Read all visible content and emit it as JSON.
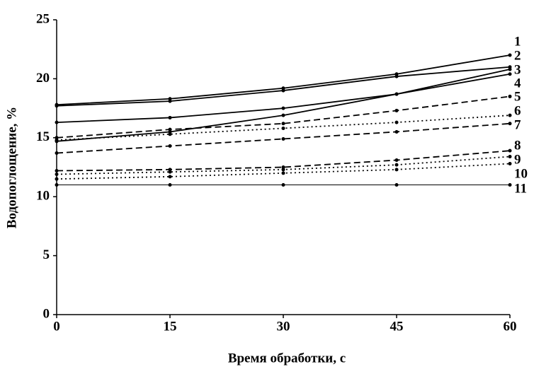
{
  "chart_data": {
    "type": "line",
    "x_label": "Время обработки, с",
    "y_label": "Водопоглощение, %",
    "x": [
      0,
      15,
      30,
      45,
      60
    ],
    "xlim": [
      0,
      60
    ],
    "xticks": [
      0,
      15,
      30,
      45,
      60
    ],
    "ylim": [
      0,
      25
    ],
    "yticks": [
      0,
      5,
      10,
      15,
      20,
      25
    ],
    "grid": false,
    "series": [
      {
        "name": "1",
        "color": "#000000",
        "dash": "solid",
        "values": [
          17.8,
          18.3,
          19.2,
          20.4,
          22.0
        ]
      },
      {
        "name": "2",
        "color": "#000000",
        "dash": "solid",
        "values": [
          17.7,
          18.1,
          19.0,
          20.2,
          21.0
        ]
      },
      {
        "name": "3",
        "color": "#000000",
        "dash": "solid",
        "values": [
          16.3,
          16.7,
          17.5,
          18.7,
          20.8
        ]
      },
      {
        "name": "4",
        "color": "#000000",
        "dash": "solid",
        "values": [
          14.7,
          15.5,
          16.9,
          18.7,
          20.4
        ]
      },
      {
        "name": "5",
        "color": "#000000",
        "dash": "dashed",
        "values": [
          15.0,
          15.7,
          16.2,
          17.3,
          18.5
        ]
      },
      {
        "name": "6",
        "color": "#000000",
        "dash": "dotted",
        "values": [
          14.8,
          15.3,
          15.8,
          16.3,
          16.9
        ]
      },
      {
        "name": "7",
        "color": "#000000",
        "dash": "dashed",
        "values": [
          13.7,
          14.3,
          14.9,
          15.5,
          16.2
        ]
      },
      {
        "name": "8",
        "color": "#000000",
        "dash": "dashed",
        "values": [
          12.2,
          12.3,
          12.5,
          13.1,
          13.9
        ]
      },
      {
        "name": "9",
        "color": "#000000",
        "dash": "dotted",
        "values": [
          11.9,
          12.1,
          12.3,
          12.7,
          13.4
        ]
      },
      {
        "name": "10",
        "color": "#000000",
        "dash": "dotted",
        "values": [
          11.5,
          11.7,
          12.0,
          12.3,
          12.8
        ]
      },
      {
        "name": "11",
        "color": "#000000",
        "dash": "solid",
        "values": [
          11.0,
          11.0,
          11.0,
          11.0,
          11.0
        ]
      }
    ]
  }
}
